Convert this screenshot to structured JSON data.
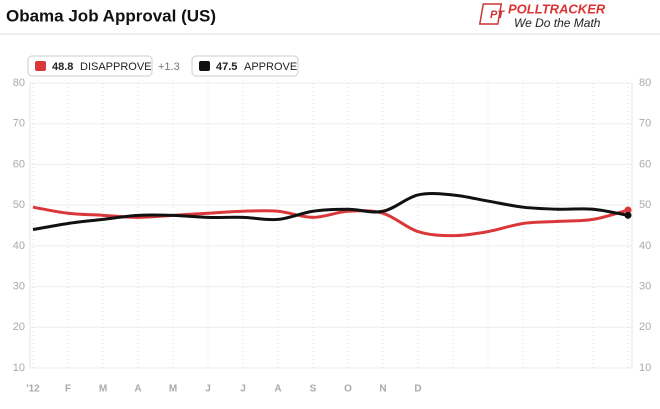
{
  "header": {
    "logo": "POLLTRACKER",
    "tagline": "We Do the Math"
  },
  "chart_data": {
    "type": "line",
    "title": "Obama Job Approval (US)",
    "spread": "+1.3",
    "categories": [
      "'12",
      "F",
      "M",
      "A",
      "M",
      "J",
      "J",
      "A",
      "S",
      "O",
      "N",
      "D",
      null,
      null,
      null,
      null,
      null,
      null
    ],
    "series": [
      {
        "name": "DISAPPROVE",
        "color": "#d9373a",
        "values": [
          49.5,
          48,
          47.5,
          47,
          47.5,
          48,
          48.5,
          48.5,
          47,
          48.5,
          48,
          43.5,
          42.5,
          43.5,
          45.5,
          46,
          46.5,
          48.8
        ]
      },
      {
        "name": "APPROVE",
        "color": "#111111",
        "values": [
          44,
          45.5,
          46.5,
          47.5,
          47.5,
          47,
          47,
          46.5,
          48.5,
          49,
          48.5,
          52.5,
          52.5,
          51,
          49.5,
          49,
          49,
          47.5
        ]
      }
    ],
    "ylim": [
      10,
      80
    ],
    "yticks": [
      10,
      20,
      30,
      40,
      50,
      60,
      70,
      80
    ],
    "grid": true
  }
}
